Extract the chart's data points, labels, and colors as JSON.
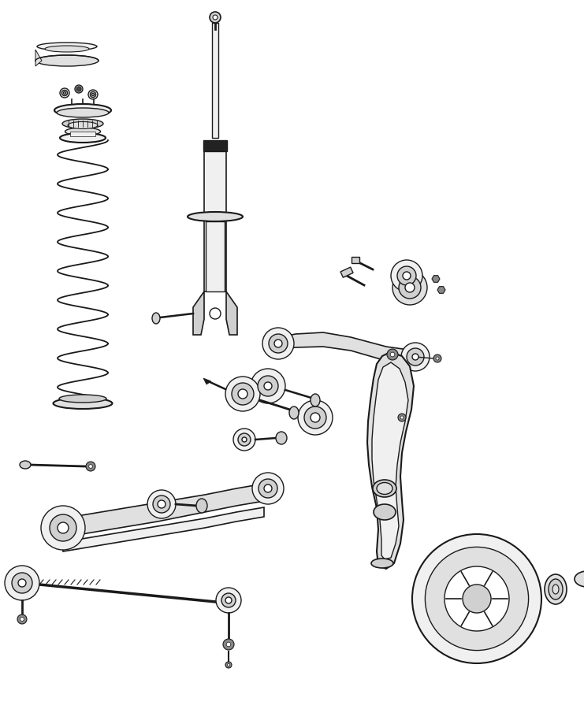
{
  "bg_color": "#ffffff",
  "line_color": "#1a1a1a",
  "lw": 1.0,
  "fig_width": 7.41,
  "fig_height": 9.0,
  "dpi": 100
}
